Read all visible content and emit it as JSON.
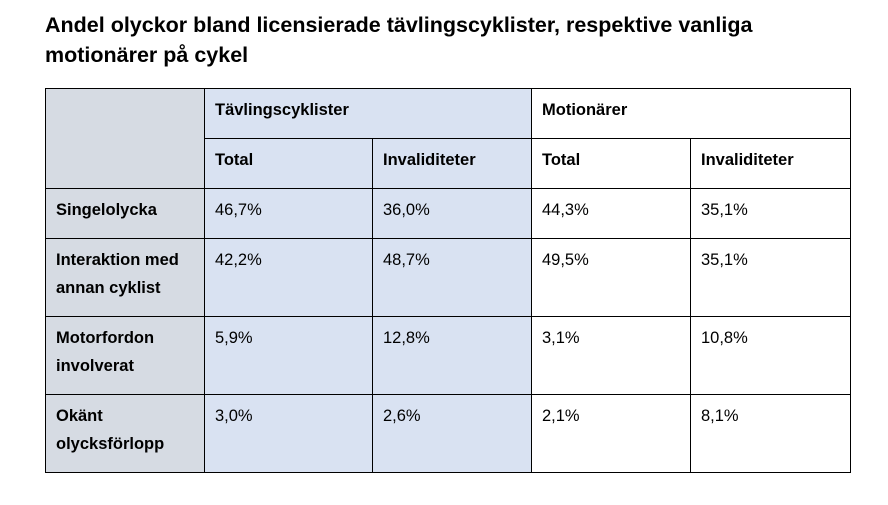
{
  "title": "Andel olyckor bland licensierade tävlingscyklister, respektive vanliga motionärer på cykel",
  "table": {
    "groups": [
      {
        "label": "Tävlingscyklister"
      },
      {
        "label": "Motionärer"
      }
    ],
    "subheaders": [
      "Total",
      "Invaliditeter",
      "Total",
      "Invaliditeter"
    ],
    "rows": [
      {
        "label": "Singelolycka",
        "values": [
          "46,7%",
          "36,0%",
          "44,3%",
          "35,1%"
        ]
      },
      {
        "label": "Interaktion med annan cyklist",
        "values": [
          "42,2%",
          "48,7%",
          "49,5%",
          "35,1%"
        ]
      },
      {
        "label": "Motorfordon involverat",
        "values": [
          "5,9%",
          "12,8%",
          "3,1%",
          "10,8%"
        ]
      },
      {
        "label": "Okänt olycksförlopp",
        "values": [
          "3,0%",
          "2,6%",
          "2,1%",
          "8,1%"
        ]
      }
    ]
  },
  "colors": {
    "row_header_fill": "#d6dbe3",
    "competitor_fill": "#d9e2f2",
    "amateur_fill": "#ffffff",
    "border": "#000000"
  }
}
